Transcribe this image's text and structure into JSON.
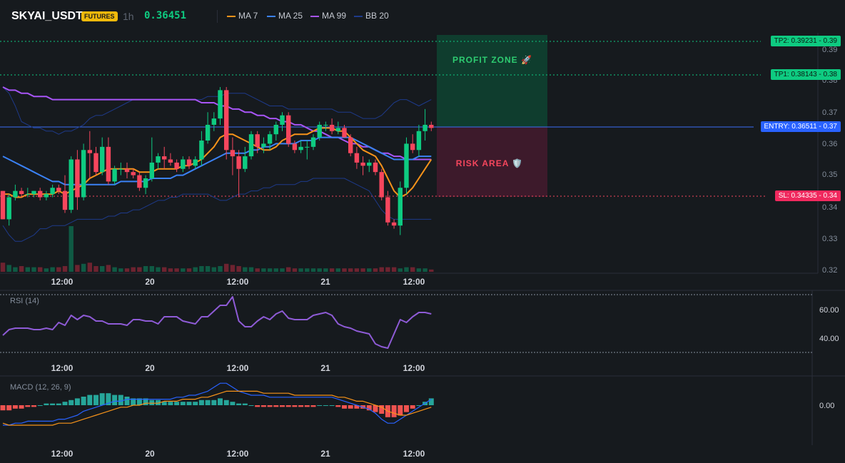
{
  "header": {
    "symbol": "SKYAI_USDT",
    "badge": "FUTURES",
    "timeframe": "1h",
    "last_price": "0.36451",
    "indicators": [
      {
        "label": "MA 7",
        "color": "#f7931a"
      },
      {
        "label": "MA 25",
        "color": "#3b82f6"
      },
      {
        "label": "MA 99",
        "color": "#a855f7"
      },
      {
        "label": "BB 20",
        "color": "#1e3a8a"
      }
    ]
  },
  "levels": {
    "tp2": {
      "label": "TP2: 0.39231",
      "axis": "0.39",
      "value": 0.39231
    },
    "tp1": {
      "label": "TP1: 0.38143",
      "axis": "0.38",
      "value": 0.38143
    },
    "entry": {
      "label": "ENTRY: 0.36511",
      "axis": "0.37",
      "value": 0.36511
    },
    "sl": {
      "label": "SL: 0.34335",
      "axis": "0.34",
      "value": 0.34335
    }
  },
  "zones": {
    "profit": "PROFIT ZONE 🚀",
    "risk": "RISK AREA 🛡️"
  },
  "colors": {
    "up": "#0ecb81",
    "down": "#f6465d",
    "profit_zone": "#0f3d2e",
    "risk_zone": "#3d1a2b"
  },
  "price_axis": {
    "ticks": [
      "0.39",
      "0.38",
      "0.37",
      "0.36",
      "0.35",
      "0.34",
      "0.33",
      "0.32"
    ]
  },
  "time_axis": {
    "ticks": [
      "12:00",
      "20",
      "12:00",
      "21",
      "12:00"
    ]
  },
  "rsi": {
    "label": "RSI (14)",
    "ticks": [
      "60.00",
      "40.00"
    ]
  },
  "macd": {
    "label": "MACD (12, 26, 9)",
    "ticks": [
      "0.00"
    ]
  },
  "chart_data": {
    "type": "candlestick",
    "ylim": [
      0.32,
      0.395
    ],
    "candles": [
      [
        0.345,
        0.345,
        0.336,
        0.336
      ],
      [
        0.336,
        0.344,
        0.334,
        0.343
      ],
      [
        0.343,
        0.347,
        0.342,
        0.345
      ],
      [
        0.345,
        0.346,
        0.343,
        0.344
      ],
      [
        0.344,
        0.346,
        0.343,
        0.344
      ],
      [
        0.344,
        0.345,
        0.343,
        0.345
      ],
      [
        0.345,
        0.346,
        0.342,
        0.343
      ],
      [
        0.343,
        0.345,
        0.342,
        0.344
      ],
      [
        0.344,
        0.347,
        0.343,
        0.346
      ],
      [
        0.346,
        0.347,
        0.344,
        0.345
      ],
      [
        0.345,
        0.35,
        0.338,
        0.339
      ],
      [
        0.339,
        0.356,
        0.338,
        0.355
      ],
      [
        0.355,
        0.358,
        0.339,
        0.343
      ],
      [
        0.343,
        0.36,
        0.342,
        0.358
      ],
      [
        0.358,
        0.364,
        0.349,
        0.357
      ],
      [
        0.357,
        0.359,
        0.35,
        0.351
      ],
      [
        0.351,
        0.362,
        0.35,
        0.359
      ],
      [
        0.359,
        0.362,
        0.347,
        0.348
      ],
      [
        0.348,
        0.353,
        0.347,
        0.352
      ],
      [
        0.352,
        0.354,
        0.35,
        0.352
      ],
      [
        0.352,
        0.354,
        0.349,
        0.351
      ],
      [
        0.351,
        0.352,
        0.349,
        0.35
      ],
      [
        0.35,
        0.351,
        0.345,
        0.346
      ],
      [
        0.346,
        0.35,
        0.344,
        0.349
      ],
      [
        0.349,
        0.362,
        0.348,
        0.354
      ],
      [
        0.354,
        0.357,
        0.352,
        0.356
      ],
      [
        0.356,
        0.359,
        0.352,
        0.355
      ],
      [
        0.355,
        0.357,
        0.353,
        0.354
      ],
      [
        0.354,
        0.355,
        0.351,
        0.352
      ],
      [
        0.352,
        0.356,
        0.351,
        0.355
      ],
      [
        0.355,
        0.356,
        0.352,
        0.353
      ],
      [
        0.353,
        0.356,
        0.352,
        0.355
      ],
      [
        0.355,
        0.364,
        0.353,
        0.361
      ],
      [
        0.361,
        0.37,
        0.36,
        0.366
      ],
      [
        0.366,
        0.37,
        0.364,
        0.368
      ],
      [
        0.368,
        0.378,
        0.366,
        0.377
      ],
      [
        0.377,
        0.378,
        0.355,
        0.358
      ],
      [
        0.358,
        0.362,
        0.35,
        0.356
      ],
      [
        0.356,
        0.358,
        0.343,
        0.352
      ],
      [
        0.352,
        0.359,
        0.351,
        0.356
      ],
      [
        0.356,
        0.364,
        0.355,
        0.363
      ],
      [
        0.363,
        0.364,
        0.357,
        0.359
      ],
      [
        0.359,
        0.362,
        0.357,
        0.36
      ],
      [
        0.36,
        0.364,
        0.358,
        0.363
      ],
      [
        0.363,
        0.367,
        0.361,
        0.366
      ],
      [
        0.366,
        0.37,
        0.364,
        0.369
      ],
      [
        0.369,
        0.37,
        0.359,
        0.36
      ],
      [
        0.36,
        0.361,
        0.357,
        0.358
      ],
      [
        0.358,
        0.361,
        0.357,
        0.359
      ],
      [
        0.359,
        0.361,
        0.355,
        0.359
      ],
      [
        0.359,
        0.363,
        0.358,
        0.362
      ],
      [
        0.362,
        0.367,
        0.361,
        0.366
      ],
      [
        0.366,
        0.367,
        0.364,
        0.366
      ],
      [
        0.366,
        0.368,
        0.363,
        0.364
      ],
      [
        0.364,
        0.367,
        0.363,
        0.365
      ],
      [
        0.365,
        0.366,
        0.362,
        0.362
      ],
      [
        0.362,
        0.363,
        0.356,
        0.357
      ],
      [
        0.357,
        0.359,
        0.352,
        0.354
      ],
      [
        0.354,
        0.356,
        0.35,
        0.353
      ],
      [
        0.353,
        0.355,
        0.351,
        0.354
      ],
      [
        0.354,
        0.355,
        0.35,
        0.351
      ],
      [
        0.351,
        0.352,
        0.342,
        0.343
      ],
      [
        0.343,
        0.345,
        0.334,
        0.335
      ],
      [
        0.335,
        0.336,
        0.333,
        0.334
      ],
      [
        0.334,
        0.348,
        0.331,
        0.346
      ],
      [
        0.346,
        0.362,
        0.344,
        0.36
      ],
      [
        0.36,
        0.363,
        0.357,
        0.358
      ],
      [
        0.358,
        0.366,
        0.356,
        0.364
      ],
      [
        0.364,
        0.371,
        0.361,
        0.366
      ],
      [
        0.366,
        0.367,
        0.364,
        0.365
      ]
    ],
    "ma7": [
      0.344,
      0.344,
      0.343,
      0.343,
      0.344,
      0.344,
      0.344,
      0.344,
      0.344,
      0.345,
      0.344,
      0.345,
      0.346,
      0.347,
      0.349,
      0.35,
      0.351,
      0.352,
      0.352,
      0.352,
      0.352,
      0.352,
      0.351,
      0.351,
      0.351,
      0.352,
      0.352,
      0.352,
      0.352,
      0.353,
      0.353,
      0.354,
      0.355,
      0.357,
      0.359,
      0.362,
      0.363,
      0.363,
      0.362,
      0.361,
      0.36,
      0.359,
      0.358,
      0.358,
      0.359,
      0.361,
      0.362,
      0.363,
      0.363,
      0.363,
      0.364,
      0.365,
      0.365,
      0.365,
      0.364,
      0.364,
      0.362,
      0.36,
      0.358,
      0.357,
      0.356,
      0.353,
      0.349,
      0.345,
      0.343,
      0.344,
      0.346,
      0.349,
      0.352,
      0.355
    ],
    "ma25": [
      0.356,
      0.355,
      0.354,
      0.353,
      0.352,
      0.351,
      0.35,
      0.349,
      0.348,
      0.348,
      0.347,
      0.347,
      0.347,
      0.347,
      0.347,
      0.347,
      0.347,
      0.347,
      0.347,
      0.348,
      0.348,
      0.348,
      0.348,
      0.348,
      0.349,
      0.349,
      0.349,
      0.349,
      0.35,
      0.35,
      0.351,
      0.352,
      0.353,
      0.354,
      0.355,
      0.356,
      0.357,
      0.357,
      0.357,
      0.357,
      0.358,
      0.358,
      0.359,
      0.359,
      0.36,
      0.36,
      0.36,
      0.36,
      0.361,
      0.361,
      0.361,
      0.362,
      0.362,
      0.362,
      0.362,
      0.362,
      0.362,
      0.361,
      0.36,
      0.359,
      0.358,
      0.357,
      0.356,
      0.355,
      0.355,
      0.355,
      0.355,
      0.356,
      0.356,
      0.356
    ],
    "ma99": [
      0.378,
      0.377,
      0.377,
      0.376,
      0.376,
      0.375,
      0.375,
      0.375,
      0.374,
      0.374,
      0.374,
      0.374,
      0.374,
      0.374,
      0.374,
      0.374,
      0.374,
      0.374,
      0.374,
      0.374,
      0.374,
      0.374,
      0.374,
      0.374,
      0.374,
      0.374,
      0.374,
      0.374,
      0.374,
      0.374,
      0.374,
      0.374,
      0.373,
      0.373,
      0.373,
      0.372,
      0.372,
      0.371,
      0.371,
      0.37,
      0.37,
      0.369,
      0.369,
      0.368,
      0.368,
      0.367,
      0.367,
      0.366,
      0.366,
      0.365,
      0.364,
      0.364,
      0.363,
      0.362,
      0.362,
      0.361,
      0.36,
      0.36,
      0.359,
      0.359,
      0.358,
      0.357,
      0.357,
      0.356,
      0.356,
      0.355,
      0.355,
      0.355,
      0.355,
      0.355
    ],
    "bb_upper": [
      0.378,
      0.376,
      0.372,
      0.367,
      0.366,
      0.365,
      0.365,
      0.364,
      0.364,
      0.363,
      0.364,
      0.364,
      0.365,
      0.366,
      0.368,
      0.369,
      0.369,
      0.37,
      0.371,
      0.372,
      0.373,
      0.374,
      0.374,
      0.374,
      0.374,
      0.374,
      0.374,
      0.374,
      0.374,
      0.374,
      0.374,
      0.374,
      0.374,
      0.375,
      0.375,
      0.375,
      0.376,
      0.376,
      0.376,
      0.376,
      0.375,
      0.374,
      0.373,
      0.372,
      0.372,
      0.372,
      0.371,
      0.371,
      0.371,
      0.371,
      0.371,
      0.371,
      0.371,
      0.371,
      0.37,
      0.37,
      0.37,
      0.369,
      0.368,
      0.368,
      0.368,
      0.369,
      0.371,
      0.373,
      0.374,
      0.374,
      0.373,
      0.372,
      0.373,
      0.374
    ],
    "bb_lower": [
      0.334,
      0.331,
      0.329,
      0.329,
      0.33,
      0.331,
      0.333,
      0.333,
      0.334,
      0.334,
      0.334,
      0.335,
      0.336,
      0.336,
      0.336,
      0.336,
      0.336,
      0.337,
      0.337,
      0.338,
      0.338,
      0.339,
      0.339,
      0.34,
      0.341,
      0.342,
      0.342,
      0.343,
      0.343,
      0.344,
      0.344,
      0.344,
      0.344,
      0.344,
      0.343,
      0.342,
      0.342,
      0.343,
      0.344,
      0.344,
      0.345,
      0.345,
      0.346,
      0.346,
      0.347,
      0.347,
      0.347,
      0.347,
      0.348,
      0.348,
      0.349,
      0.349,
      0.349,
      0.349,
      0.349,
      0.349,
      0.348,
      0.347,
      0.346,
      0.345,
      0.342,
      0.339,
      0.337,
      0.336,
      0.336,
      0.336,
      0.336,
      0.336,
      0.336,
      0.336
    ],
    "volume": [
      8,
      6,
      4,
      5,
      4,
      4,
      4,
      3,
      4,
      4,
      5,
      40,
      6,
      7,
      8,
      5,
      5,
      6,
      4,
      3,
      3,
      4,
      4,
      5,
      5,
      4,
      4,
      3,
      3,
      3,
      3,
      4,
      5,
      5,
      4,
      5,
      7,
      6,
      5,
      4,
      4,
      3,
      3,
      3,
      3,
      3,
      4,
      3,
      3,
      3,
      3,
      3,
      3,
      3,
      3,
      3,
      3,
      3,
      3,
      3,
      3,
      4,
      4,
      4,
      3,
      4,
      4,
      3,
      3,
      2
    ],
    "rsi": [
      42,
      46,
      47,
      47,
      47,
      46,
      46,
      47,
      46,
      51,
      49,
      56,
      53,
      56,
      55,
      52,
      52,
      50,
      50,
      50,
      49,
      53,
      53,
      52,
      52,
      50,
      55,
      55,
      55,
      52,
      51,
      50,
      55,
      55,
      59,
      63,
      63,
      69,
      52,
      48,
      48,
      52,
      55,
      53,
      57,
      59,
      54,
      53,
      53,
      53,
      56,
      57,
      58,
      56,
      50,
      48,
      47,
      45,
      44,
      43,
      36,
      34,
      33,
      43,
      53,
      51,
      55,
      58,
      58,
      57
    ],
    "macd_hist": [
      -3,
      -3,
      -2,
      -2,
      -1,
      -1,
      0,
      1,
      1,
      1,
      2,
      3,
      4,
      5,
      6,
      6,
      7,
      7,
      6,
      6,
      5,
      4,
      4,
      4,
      3,
      3,
      2,
      2,
      2,
      2,
      2,
      2,
      3,
      3,
      3,
      4,
      3,
      2,
      1,
      1,
      0,
      -1,
      -1,
      -1,
      -1,
      -1,
      -1,
      -1,
      -1,
      -1,
      -1,
      0,
      0,
      0,
      -1,
      -2,
      -2,
      -2,
      -2,
      -3,
      -4,
      -5,
      -7,
      -7,
      -6,
      -4,
      -2,
      0,
      2,
      4
    ],
    "macd_line": [
      -10,
      -10,
      -9,
      -9,
      -8,
      -8,
      -8,
      -8,
      -8,
      -7,
      -7,
      -6,
      -5,
      -3,
      -2,
      -1,
      0,
      1,
      2,
      2,
      3,
      3,
      3,
      3,
      3,
      3,
      3,
      3,
      4,
      4,
      5,
      5,
      6,
      7,
      9,
      11,
      11,
      9,
      7,
      6,
      5,
      5,
      5,
      4,
      4,
      4,
      4,
      4,
      4,
      4,
      4,
      4,
      4,
      4,
      3,
      2,
      1,
      0,
      -1,
      -2,
      -4,
      -7,
      -9,
      -9,
      -7,
      -5,
      -3,
      -1,
      1,
      3
    ],
    "macd_signal": [
      -9,
      -10,
      -10,
      -10,
      -10,
      -10,
      -10,
      -10,
      -10,
      -9,
      -9,
      -9,
      -8,
      -7,
      -6,
      -5,
      -4,
      -3,
      -2,
      -1,
      -1,
      0,
      0,
      1,
      1,
      1,
      2,
      2,
      2,
      3,
      3,
      3,
      4,
      4,
      5,
      6,
      7,
      7,
      7,
      7,
      7,
      7,
      6,
      6,
      6,
      6,
      6,
      5,
      5,
      5,
      5,
      5,
      5,
      5,
      4,
      4,
      3,
      2,
      2,
      1,
      0,
      -1,
      -3,
      -4,
      -5,
      -5,
      -4,
      -3,
      -2,
      -1
    ]
  }
}
